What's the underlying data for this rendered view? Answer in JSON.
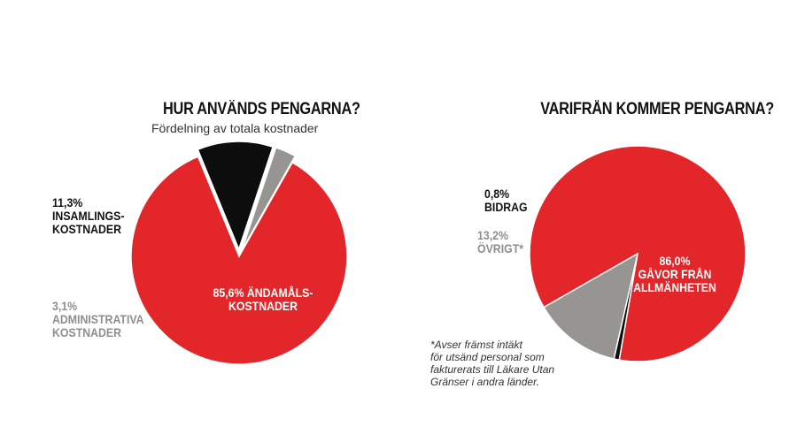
{
  "colors": {
    "red": "#e2262a",
    "black": "#0d0d0d",
    "grey": "#969591"
  },
  "chart_data": [
    {
      "type": "pie",
      "title": "HUR ANVÄNDS PENGARNA?",
      "subtitle": "Fördelning av totala kostnader",
      "slices": [
        {
          "label": "ÄNDAMÅLS-KOSTNADER",
          "value": 85.6,
          "value_label": "85,6%",
          "color": "#e2262a"
        },
        {
          "label": "INSAMLINGS-KOSTNADER",
          "value": 11.3,
          "value_label": "11,3%",
          "color": "#0d0d0d"
        },
        {
          "label": "ADMINISTRATIVA KOSTNADER",
          "value": 3.1,
          "value_label": "3,1%",
          "color": "#969591"
        }
      ]
    },
    {
      "type": "pie",
      "title": "VARIFRÅN KOMMER PENGARNA?",
      "slices": [
        {
          "label": "GÅVOR FRÅN ALLMÄNHETEN",
          "value": 86.0,
          "value_label": "86,0%",
          "color": "#e2262a"
        },
        {
          "label": "BIDRAG",
          "value": 0.8,
          "value_label": "0,8%",
          "color": "#0d0d0d"
        },
        {
          "label": "ÖVRIGT*",
          "value": 13.2,
          "value_label": "13,2%",
          "color": "#969591"
        }
      ]
    }
  ],
  "labels": {
    "c1_red": [
      "85,6% ÄNDAMÅLS-",
      "KOSTNADER"
    ],
    "c1_black": [
      "11,3%",
      "INSAMLINGS-",
      "KOSTNADER"
    ],
    "c1_grey": [
      "3,1%",
      "ADMINISTRATIVA",
      "KOSTNADER"
    ],
    "c2_red": [
      "86,0%",
      "GÅVOR FRÅN",
      "ALLMÄNHETEN"
    ],
    "c2_black": [
      "0,8%",
      "BIDRAG"
    ],
    "c2_grey": [
      "13,2%",
      "ÖVRIGT*"
    ]
  },
  "footnote": [
    "*Avser främst intäkt",
    "för utsänd personal som",
    "fakturerats till Läkare Utan",
    "Gränser i andra länder."
  ]
}
